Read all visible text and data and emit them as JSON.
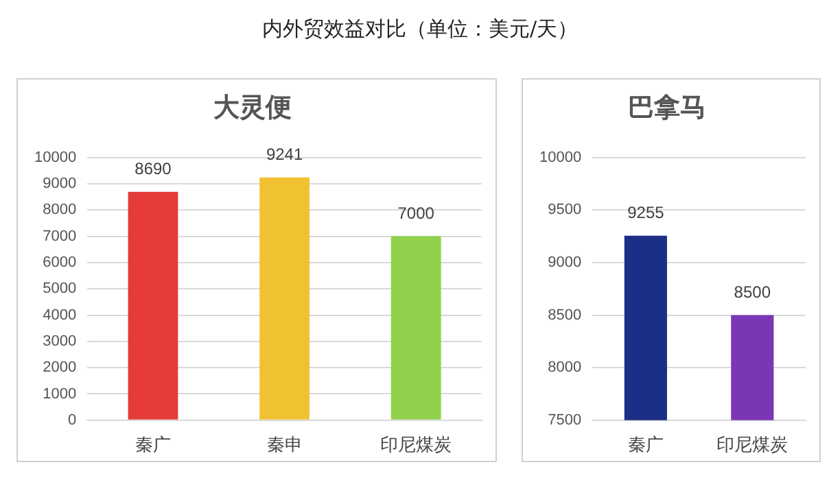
{
  "chart_data": [
    {
      "type": "bar",
      "title": "内外贸效益对比（单位：美元/天）",
      "subtitle": "大灵便",
      "categories": [
        "秦广",
        "秦申",
        "印尼煤炭"
      ],
      "values": [
        8690,
        9241,
        7000
      ],
      "colors": [
        "#e53b3b",
        "#f0c232",
        "#8fd14a"
      ],
      "ylim": [
        0,
        10000
      ],
      "yticks": [
        0,
        1000,
        2000,
        3000,
        4000,
        5000,
        6000,
        7000,
        8000,
        9000,
        10000
      ],
      "grid": "y",
      "legend": false,
      "data_labels": true
    },
    {
      "type": "bar",
      "subtitle": "巴拿马",
      "categories": [
        "秦广",
        "印尼煤炭"
      ],
      "values": [
        9255,
        8500
      ],
      "colors": [
        "#1c2f86",
        "#7b36b5"
      ],
      "ylim": [
        7500,
        10000
      ],
      "yticks": [
        7500,
        8000,
        8500,
        9000,
        9500,
        10000
      ],
      "grid": "y",
      "legend": false,
      "data_labels": true
    }
  ]
}
